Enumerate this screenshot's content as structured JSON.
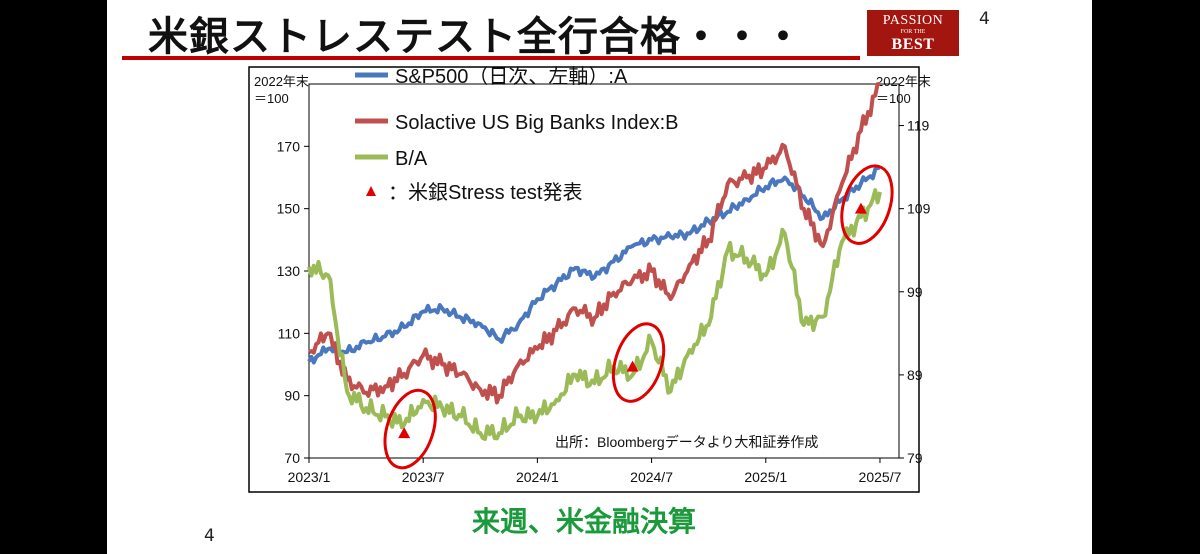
{
  "slide": {
    "title": "米銀ストレステスト全行合格・・・",
    "logo": {
      "line1": "PASSION",
      "line2": "FOR THE",
      "line3": "BEST"
    },
    "page_number_top": "4",
    "page_number_bottom": "4",
    "subtitle": "来週、米金融決算",
    "source_note": "出所：Bloombergデータより大和証券作成"
  },
  "colors": {
    "spx": "#4a78be",
    "banks": "#c0504d",
    "ratio": "#9bbb59",
    "marker": "#e00000",
    "circle": "#e00000",
    "subtitle": "#1a9a3a",
    "title_rule": "#c00000"
  },
  "chart_data": {
    "type": "line",
    "left_axis": {
      "unit_label_line1": "2022年末",
      "unit_label_line2": "＝100",
      "ylim": [
        70,
        190
      ],
      "ticks": [
        70,
        90,
        110,
        130,
        150,
        170
      ]
    },
    "right_axis": {
      "unit_label_line1": "2022年末",
      "unit_label_line2": "＝100",
      "ylim": [
        79,
        124
      ],
      "ticks": [
        79,
        89,
        99,
        109,
        119
      ]
    },
    "x_axis": {
      "ticks": [
        "2023/1",
        "2023/7",
        "2024/1",
        "2024/7",
        "2025/1",
        "2025/7"
      ]
    },
    "grid": false,
    "legend_position": "top-left",
    "series": [
      {
        "name": "S&P500（日次、左軸）:A",
        "axis": "left",
        "x": [
          "2023/1",
          "2023/2",
          "2023/3",
          "2023/4",
          "2023/5",
          "2023/6",
          "2023/7",
          "2023/8",
          "2023/9",
          "2023/10",
          "2023/11",
          "2023/12",
          "2024/1",
          "2024/2",
          "2024/3",
          "2024/4",
          "2024/5",
          "2024/6",
          "2024/7",
          "2024/8",
          "2024/9",
          "2024/10",
          "2024/11",
          "2024/12",
          "2025/1",
          "2025/2",
          "2025/3",
          "2025/4",
          "2025/5",
          "2025/6",
          "2025/7"
        ],
        "values": [
          101,
          105,
          104,
          107,
          109,
          112,
          117,
          118,
          115,
          113,
          108,
          113,
          121,
          126,
          131,
          128,
          133,
          138,
          140,
          141,
          142,
          146,
          149,
          153,
          157,
          160,
          154,
          147,
          153,
          158,
          163
        ]
      },
      {
        "name": "Solactive US Big Banks Index:B",
        "axis": "left",
        "x": [
          "2023/1",
          "2023/2",
          "2023/3",
          "2023/4",
          "2023/5",
          "2023/6",
          "2023/7",
          "2023/8",
          "2023/9",
          "2023/10",
          "2023/11",
          "2023/12",
          "2024/1",
          "2024/2",
          "2024/3",
          "2024/4",
          "2024/5",
          "2024/6",
          "2024/7",
          "2024/8",
          "2024/9",
          "2024/10",
          "2024/11",
          "2024/12",
          "2025/1",
          "2025/2",
          "2025/3",
          "2025/4",
          "2025/5",
          "2025/6",
          "2025/7"
        ],
        "values": [
          104,
          110,
          95,
          91,
          93,
          97,
          103,
          100,
          97,
          92,
          90,
          100,
          105,
          111,
          118,
          115,
          123,
          127,
          130,
          121,
          132,
          140,
          158,
          160,
          163,
          170,
          150,
          138,
          158,
          175,
          190
        ]
      },
      {
        "name": "B/A",
        "axis": "right",
        "x": [
          "2023/1",
          "2023/2",
          "2023/3",
          "2023/4",
          "2023/5",
          "2023/6",
          "2023/7",
          "2023/8",
          "2023/9",
          "2023/10",
          "2023/11",
          "2023/12",
          "2024/1",
          "2024/2",
          "2024/3",
          "2024/4",
          "2024/5",
          "2024/6",
          "2024/7",
          "2024/8",
          "2024/9",
          "2024/10",
          "2024/11",
          "2024/12",
          "2025/1",
          "2025/2",
          "2025/3",
          "2025/4",
          "2025/5",
          "2025/6",
          "2025/7"
        ],
        "values": [
          102,
          101,
          87,
          85,
          84,
          83,
          86,
          85,
          84,
          82,
          82,
          84,
          84,
          86,
          89,
          88,
          90,
          89,
          93,
          87,
          92,
          95,
          104,
          103,
          101,
          106,
          95,
          96,
          105,
          108,
          111
        ]
      },
      {
        "name": "：米銀Stress test発表",
        "type": "marker",
        "points": [
          {
            "x": "2023/6",
            "y": 82
          },
          {
            "x": "2024/6",
            "y": 90
          },
          {
            "x": "2025/6",
            "y": 109
          }
        ]
      }
    ]
  }
}
